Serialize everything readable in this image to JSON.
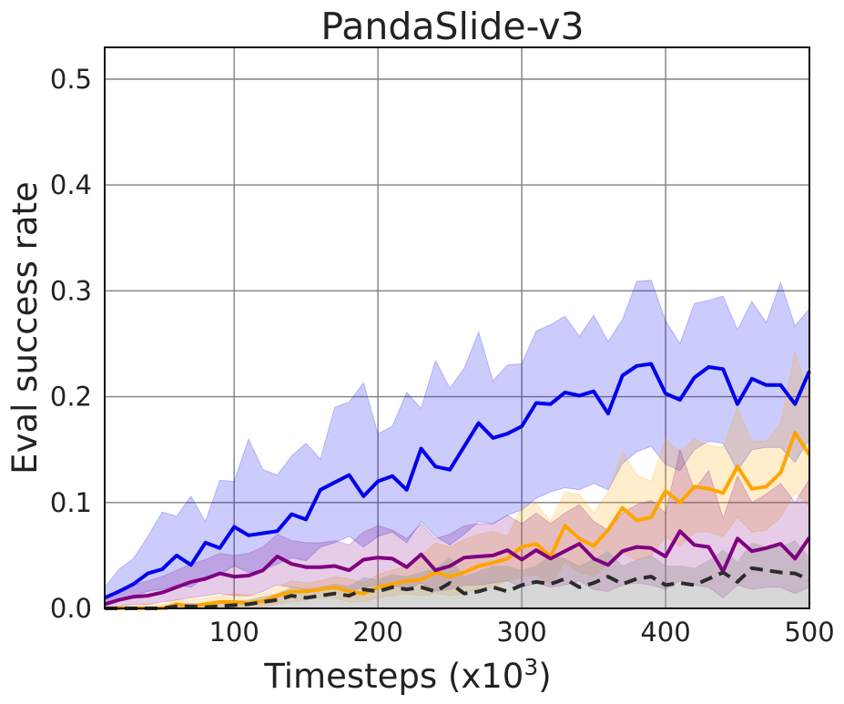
{
  "chart_data": {
    "type": "line",
    "title": "PandaSlide-v3",
    "xlabel": "Timesteps (x10",
    "xlabel_sup": "3",
    "xlabel_close": ")",
    "ylabel": "Eval success rate",
    "xlim": [
      10,
      500
    ],
    "ylim": [
      0,
      0.53
    ],
    "grid": true,
    "legend": "none",
    "x_ticks": [
      100,
      200,
      300,
      400,
      500
    ],
    "y_ticks": [
      0.0,
      0.1,
      0.2,
      0.3,
      0.4,
      0.5
    ],
    "y_tick_labels": [
      "0.0",
      "0.1",
      "0.2",
      "0.3",
      "0.4",
      "0.5"
    ],
    "x": [
      10,
      20,
      30,
      40,
      50,
      60,
      70,
      80,
      90,
      100,
      110,
      120,
      130,
      140,
      150,
      160,
      170,
      180,
      190,
      200,
      210,
      220,
      230,
      240,
      250,
      260,
      270,
      280,
      290,
      300,
      310,
      320,
      330,
      340,
      350,
      360,
      370,
      380,
      390,
      400,
      410,
      420,
      430,
      440,
      450,
      460,
      470,
      480,
      490,
      500
    ],
    "series": [
      {
        "color": "#0000ee",
        "style": "solid",
        "values": [
          0.01,
          0.016,
          0.023,
          0.033,
          0.037,
          0.05,
          0.041,
          0.062,
          0.057,
          0.077,
          0.069,
          0.071,
          0.073,
          0.089,
          0.084,
          0.112,
          0.119,
          0.126,
          0.106,
          0.12,
          0.125,
          0.112,
          0.151,
          0.134,
          0.131,
          0.153,
          0.175,
          0.161,
          0.165,
          0.172,
          0.194,
          0.193,
          0.204,
          0.201,
          0.205,
          0.184,
          0.22,
          0.229,
          0.231,
          0.203,
          0.197,
          0.218,
          0.228,
          0.226,
          0.193,
          0.217,
          0.211,
          0.211,
          0.193,
          0.224
        ],
        "upper": [
          0.02,
          0.037,
          0.047,
          0.068,
          0.091,
          0.087,
          0.106,
          0.082,
          0.121,
          0.12,
          0.16,
          0.131,
          0.126,
          0.144,
          0.156,
          0.141,
          0.19,
          0.195,
          0.213,
          0.165,
          0.172,
          0.204,
          0.189,
          0.234,
          0.208,
          0.227,
          0.261,
          0.215,
          0.23,
          0.231,
          0.262,
          0.268,
          0.276,
          0.257,
          0.277,
          0.252,
          0.273,
          0.309,
          0.31,
          0.272,
          0.25,
          0.288,
          0.291,
          0.295,
          0.263,
          0.29,
          0.27,
          0.308,
          0.267,
          0.283
        ],
        "lower": [
          0.004,
          0.008,
          0.012,
          0.016,
          0.018,
          0.022,
          0.02,
          0.03,
          0.032,
          0.04,
          0.034,
          0.036,
          0.042,
          0.048,
          0.045,
          0.058,
          0.062,
          0.068,
          0.058,
          0.068,
          0.072,
          0.062,
          0.082,
          0.068,
          0.06,
          0.07,
          0.082,
          0.08,
          0.088,
          0.093,
          0.104,
          0.11,
          0.114,
          0.112,
          0.118,
          0.112,
          0.137,
          0.148,
          0.153,
          0.136,
          0.13,
          0.15,
          0.158,
          0.156,
          0.13,
          0.15,
          0.152,
          0.152,
          0.138,
          0.16
        ]
      },
      {
        "color": "#ffa500",
        "style": "solid",
        "values": [
          0.0,
          0.0,
          0.0,
          0.0,
          0.0,
          0.004,
          0.002,
          0.004,
          0.006,
          0.006,
          0.005,
          0.007,
          0.012,
          0.016,
          0.016,
          0.018,
          0.02,
          0.016,
          0.014,
          0.02,
          0.023,
          0.026,
          0.027,
          0.034,
          0.03,
          0.034,
          0.04,
          0.043,
          0.047,
          0.058,
          0.061,
          0.049,
          0.078,
          0.066,
          0.059,
          0.074,
          0.095,
          0.083,
          0.086,
          0.111,
          0.1,
          0.115,
          0.113,
          0.109,
          0.134,
          0.113,
          0.115,
          0.128,
          0.166,
          0.145
        ],
        "upper": [
          0.002,
          0.002,
          0.003,
          0.004,
          0.004,
          0.008,
          0.008,
          0.01,
          0.012,
          0.014,
          0.012,
          0.014,
          0.02,
          0.026,
          0.024,
          0.026,
          0.03,
          0.028,
          0.024,
          0.032,
          0.036,
          0.04,
          0.05,
          0.062,
          0.058,
          0.065,
          0.07,
          0.073,
          0.068,
          0.096,
          0.099,
          0.082,
          0.11,
          0.108,
          0.09,
          0.11,
          0.148,
          0.126,
          0.12,
          0.16,
          0.148,
          0.16,
          0.154,
          0.152,
          0.19,
          0.158,
          0.158,
          0.175,
          0.243,
          0.2
        ],
        "lower": [
          0.0,
          0.0,
          0.0,
          0.0,
          0.0,
          0.0,
          0.0,
          0.0,
          0.0,
          0.0,
          0.0,
          0.001,
          0.004,
          0.006,
          0.008,
          0.01,
          0.01,
          0.006,
          0.006,
          0.01,
          0.012,
          0.014,
          0.012,
          0.014,
          0.012,
          0.014,
          0.018,
          0.02,
          0.026,
          0.03,
          0.032,
          0.022,
          0.044,
          0.034,
          0.03,
          0.042,
          0.052,
          0.046,
          0.05,
          0.068,
          0.058,
          0.072,
          0.072,
          0.068,
          0.086,
          0.072,
          0.074,
          0.086,
          0.11,
          0.096
        ]
      },
      {
        "color": "#800080",
        "style": "solid",
        "values": [
          0.004,
          0.008,
          0.011,
          0.012,
          0.015,
          0.02,
          0.025,
          0.028,
          0.033,
          0.03,
          0.031,
          0.036,
          0.049,
          0.042,
          0.039,
          0.039,
          0.04,
          0.036,
          0.046,
          0.048,
          0.047,
          0.039,
          0.051,
          0.036,
          0.04,
          0.048,
          0.049,
          0.05,
          0.055,
          0.046,
          0.055,
          0.047,
          0.054,
          0.061,
          0.047,
          0.041,
          0.054,
          0.058,
          0.057,
          0.049,
          0.073,
          0.06,
          0.058,
          0.035,
          0.066,
          0.054,
          0.057,
          0.061,
          0.047,
          0.067
        ],
        "upper": [
          0.01,
          0.018,
          0.022,
          0.026,
          0.03,
          0.036,
          0.042,
          0.046,
          0.052,
          0.05,
          0.052,
          0.058,
          0.07,
          0.064,
          0.062,
          0.062,
          0.064,
          0.06,
          0.072,
          0.078,
          0.074,
          0.066,
          0.08,
          0.066,
          0.07,
          0.078,
          0.08,
          0.08,
          0.088,
          0.08,
          0.09,
          0.08,
          0.09,
          0.098,
          0.082,
          0.074,
          0.09,
          0.098,
          0.102,
          0.09,
          0.15,
          0.112,
          0.13,
          0.085,
          0.125,
          0.1,
          0.108,
          0.118,
          0.1,
          0.122
        ],
        "lower": [
          0.0,
          0.002,
          0.004,
          0.004,
          0.006,
          0.008,
          0.01,
          0.012,
          0.014,
          0.012,
          0.012,
          0.016,
          0.022,
          0.02,
          0.018,
          0.018,
          0.018,
          0.016,
          0.02,
          0.022,
          0.022,
          0.018,
          0.024,
          0.016,
          0.018,
          0.022,
          0.022,
          0.024,
          0.026,
          0.02,
          0.024,
          0.02,
          0.022,
          0.026,
          0.018,
          0.016,
          0.022,
          0.024,
          0.022,
          0.018,
          0.026,
          0.022,
          0.02,
          0.01,
          0.022,
          0.018,
          0.02,
          0.02,
          0.014,
          0.02
        ]
      },
      {
        "color": "#2b2b2b",
        "style": "dashed",
        "values": [
          0.0,
          0.0,
          0.0,
          0.0,
          0.0,
          0.002,
          0.002,
          0.001,
          0.002,
          0.003,
          0.004,
          0.006,
          0.008,
          0.012,
          0.01,
          0.012,
          0.014,
          0.012,
          0.018,
          0.016,
          0.02,
          0.018,
          0.02,
          0.016,
          0.024,
          0.014,
          0.016,
          0.02,
          0.016,
          0.022,
          0.025,
          0.023,
          0.028,
          0.02,
          0.024,
          0.03,
          0.023,
          0.028,
          0.03,
          0.022,
          0.024,
          0.022,
          0.028,
          0.034,
          0.025,
          0.038,
          0.036,
          0.034,
          0.033,
          0.027
        ],
        "upper": [
          0.001,
          0.001,
          0.002,
          0.002,
          0.002,
          0.004,
          0.005,
          0.004,
          0.006,
          0.007,
          0.008,
          0.011,
          0.014,
          0.02,
          0.018,
          0.02,
          0.023,
          0.021,
          0.029,
          0.027,
          0.032,
          0.03,
          0.034,
          0.038,
          0.048,
          0.03,
          0.035,
          0.04,
          0.04,
          0.036,
          0.04,
          0.05,
          0.047,
          0.04,
          0.046,
          0.054,
          0.04,
          0.046,
          0.05,
          0.04,
          0.04,
          0.038,
          0.045,
          0.055,
          0.044,
          0.062,
          0.058,
          0.058,
          0.064,
          0.048
        ],
        "lower": [
          0.0,
          0.0,
          0.0,
          0.0,
          0.0,
          0.0,
          0.0,
          0.0,
          0.0,
          0.0,
          0.0,
          0.0,
          0.0,
          0.0,
          0.0,
          0.0,
          0.0,
          0.0,
          0.0,
          0.0,
          0.0,
          0.0,
          0.0,
          0.0,
          0.0,
          0.0,
          0.0,
          0.0,
          0.0,
          0.0,
          0.0,
          0.0,
          0.0,
          0.0,
          0.0,
          0.0,
          0.0,
          0.0,
          0.0,
          0.0,
          0.0,
          0.0,
          0.0,
          0.0,
          0.0,
          0.0,
          0.0,
          0.0,
          0.0,
          0.0
        ]
      }
    ]
  }
}
